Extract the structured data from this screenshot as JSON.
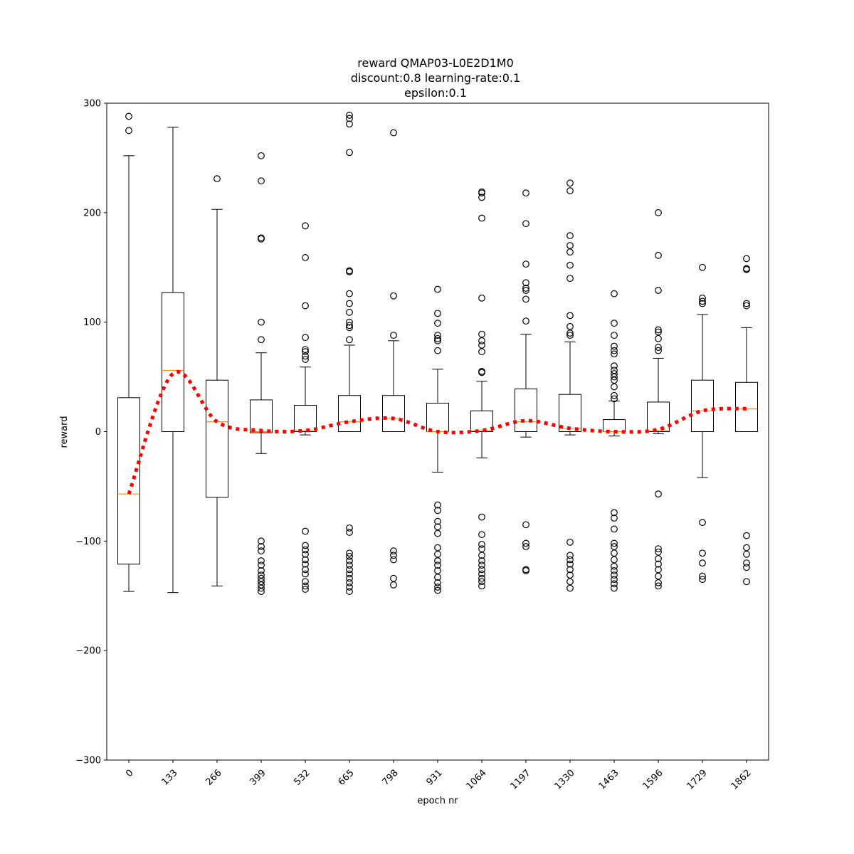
{
  "chart_data": {
    "type": "box",
    "title_lines": [
      "reward QMAP03-L0E2D1M0",
      "discount:0.8 learning-rate:0.1",
      "epsilon:0.1"
    ],
    "xlabel": "epoch nr",
    "ylabel": "reward",
    "ylim": [
      -300,
      300
    ],
    "yticks": [
      -300,
      -200,
      -100,
      0,
      100,
      200,
      300
    ],
    "categories": [
      "0",
      "133",
      "266",
      "399",
      "532",
      "665",
      "798",
      "931",
      "1064",
      "1197",
      "1330",
      "1463",
      "1596",
      "1729",
      "1862"
    ],
    "boxes": [
      {
        "q1": -121,
        "median": -57,
        "q3": 31,
        "whisker_low": -146,
        "whisker_high": 252,
        "outliers": [
          288,
          275
        ]
      },
      {
        "q1": 0,
        "median": 56,
        "q3": 127,
        "whisker_low": -147,
        "whisker_high": 278,
        "outliers": []
      },
      {
        "q1": -60,
        "median": 9,
        "q3": 47,
        "whisker_low": -141,
        "whisker_high": 203,
        "outliers": [
          231
        ]
      },
      {
        "q1": -1,
        "median": 0,
        "q3": 29,
        "whisker_low": -20,
        "whisker_high": 72,
        "outliers": [
          252,
          229,
          177,
          176,
          100,
          84,
          -100,
          -105,
          -109,
          -118,
          -122,
          -127,
          -131,
          -134,
          -137,
          -140,
          -143,
          -146
        ]
      },
      {
        "q1": 0,
        "median": 1,
        "q3": 24,
        "whisker_low": -3,
        "whisker_high": 59,
        "outliers": [
          188,
          159,
          115,
          86,
          75,
          73,
          69,
          66,
          -91,
          -104,
          -108,
          -112,
          -117,
          -121,
          -126,
          -130,
          -137,
          -141,
          -144
        ]
      },
      {
        "q1": 0,
        "median": 9,
        "q3": 33,
        "whisker_low": 0,
        "whisker_high": 79,
        "outliers": [
          289,
          286,
          281,
          255,
          147,
          146,
          126,
          117,
          109,
          100,
          97,
          95,
          84,
          -88,
          -92,
          -111,
          -114,
          -118,
          -122,
          -126,
          -130,
          -134,
          -138,
          -142,
          -146
        ]
      },
      {
        "q1": 0,
        "median": 12,
        "q3": 33,
        "whisker_low": 0,
        "whisker_high": 83,
        "outliers": [
          273,
          124,
          88,
          -109,
          -113,
          -117,
          -134,
          -140
        ]
      },
      {
        "q1": 0,
        "median": 0,
        "q3": 26,
        "whisker_low": -37,
        "whisker_high": 57,
        "outliers": [
          130,
          108,
          99,
          88,
          85,
          83,
          74,
          -67,
          -72,
          -82,
          -87,
          -93,
          -106,
          -112,
          -118,
          -122,
          -127,
          -133,
          -138,
          -142,
          -145
        ]
      },
      {
        "q1": 0,
        "median": 1,
        "q3": 19,
        "whisker_low": -24,
        "whisker_high": 46,
        "outliers": [
          219,
          218,
          214,
          195,
          122,
          89,
          83,
          79,
          73,
          55,
          54,
          -78,
          -94,
          -103,
          -107,
          -113,
          -118,
          -122,
          -126,
          -130,
          -134,
          -137,
          -141
        ]
      },
      {
        "q1": 0,
        "median": 9,
        "q3": 39,
        "whisker_low": -5,
        "whisker_high": 89,
        "outliers": [
          218,
          190,
          153,
          136,
          131,
          129,
          121,
          101,
          -85,
          -102,
          -105,
          -126,
          -127
        ]
      },
      {
        "q1": 0,
        "median": 3,
        "q3": 34,
        "whisker_low": -3,
        "whisker_high": 82,
        "outliers": [
          227,
          220,
          179,
          170,
          164,
          152,
          140,
          106,
          96,
          90,
          88,
          -101,
          -113,
          -117,
          -121,
          -126,
          -131,
          -137,
          -143
        ]
      },
      {
        "q1": 0,
        "median": 0,
        "q3": 11,
        "whisker_low": -4,
        "whisker_high": 28,
        "outliers": [
          126,
          99,
          88,
          78,
          74,
          71,
          60,
          56,
          53,
          50,
          47,
          41,
          33,
          30,
          -74,
          -79,
          -89,
          -102,
          -105,
          -111,
          -117,
          -123,
          -127,
          -131,
          -135,
          -139,
          -143
        ]
      },
      {
        "q1": 0,
        "median": 1,
        "q3": 27,
        "whisker_low": -2,
        "whisker_high": 67,
        "outliers": [
          200,
          161,
          129,
          93,
          91,
          85,
          77,
          74,
          -57,
          -107,
          -110,
          -116,
          -121,
          -126,
          -132,
          -138,
          -141
        ]
      },
      {
        "q1": 0,
        "median": 19,
        "q3": 47,
        "whisker_low": -42,
        "whisker_high": 107,
        "outliers": [
          150,
          122,
          119,
          117,
          -83,
          -111,
          -120,
          -132,
          -135
        ]
      },
      {
        "q1": 0,
        "median": 21,
        "q3": 45,
        "whisker_low": 0,
        "whisker_high": 95,
        "outliers": [
          158,
          149,
          148,
          117,
          115,
          -95,
          -106,
          -112,
          -120,
          -124,
          -137
        ]
      }
    ],
    "trend_line": {
      "style": "dotted",
      "values": [
        -57,
        53,
        9,
        1,
        1,
        9,
        12,
        0,
        1,
        10,
        3,
        0,
        2,
        19,
        21
      ]
    },
    "colors": {
      "box": "#000000",
      "median": "#ff7f0e",
      "trend": "#ff0000"
    }
  }
}
